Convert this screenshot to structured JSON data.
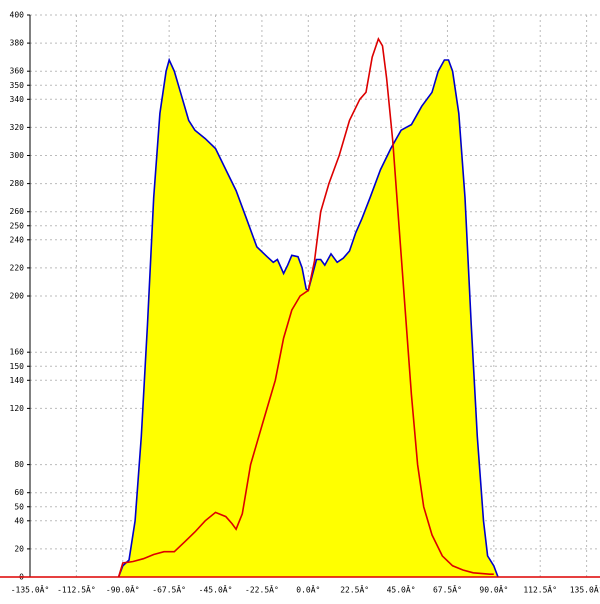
{
  "chart_data": {
    "type": "area-line",
    "xlim": [
      -135,
      141.5
    ],
    "ylim": [
      0,
      400
    ],
    "xticks": [
      {
        "value": -135,
        "label": "-135.0Â°"
      },
      {
        "value": -112.5,
        "label": "-112.5Â°"
      },
      {
        "value": -90,
        "label": "-90.0Â°"
      },
      {
        "value": -67.5,
        "label": "-67.5Â°"
      },
      {
        "value": -45,
        "label": "-45.0Â°"
      },
      {
        "value": -22.5,
        "label": "-22.5Â°"
      },
      {
        "value": 0,
        "label": "0.0Â°"
      },
      {
        "value": 22.5,
        "label": "22.5Â°"
      },
      {
        "value": 45,
        "label": "45.0Â°"
      },
      {
        "value": 67.5,
        "label": "67.5Â°"
      },
      {
        "value": 90,
        "label": "90.0Â°"
      },
      {
        "value": 112.5,
        "label": "112.5Â°"
      },
      {
        "value": 135,
        "label": "135.0Â°"
      }
    ],
    "yticks": [
      0,
      20,
      40,
      50,
      60,
      80,
      120,
      140,
      150,
      160,
      200,
      220,
      240,
      250,
      260,
      280,
      300,
      320,
      340,
      350,
      360,
      380,
      400
    ],
    "grid": true,
    "series": [
      {
        "color": "#0000cc",
        "fill": "#ffff00",
        "x": [
          -92,
          -90,
          -87,
          -84,
          -81,
          -78,
          -75,
          -72,
          -69,
          -67.5,
          -65,
          -62,
          -58,
          -55,
          -50,
          -45,
          -40,
          -35,
          -30,
          -25,
          -20,
          -17,
          -15,
          -12,
          -10,
          -8,
          -5,
          -3,
          -1,
          0,
          2,
          4,
          6,
          8,
          11,
          14,
          17,
          20,
          23,
          26,
          30,
          35,
          40,
          45,
          50,
          55,
          60,
          63,
          66,
          68,
          70,
          73,
          76,
          79,
          82,
          85,
          87,
          90,
          92
        ],
        "values": [
          0,
          8,
          12,
          40,
          100,
          180,
          270,
          330,
          360,
          368,
          360,
          345,
          325,
          318,
          312,
          305,
          290,
          275,
          255,
          235,
          228,
          224,
          226,
          216,
          222,
          229,
          228,
          220,
          205,
          204,
          215,
          226,
          226,
          222,
          230,
          224,
          227,
          232,
          245,
          255,
          270,
          290,
          305,
          318,
          322,
          335,
          345,
          360,
          368,
          368,
          360,
          330,
          270,
          180,
          100,
          40,
          15,
          8,
          0
        ]
      },
      {
        "color": "#dd0000",
        "x": [
          -92,
          -90,
          -85,
          -80,
          -75,
          -70,
          -65,
          -60,
          -55,
          -50,
          -45,
          -40,
          -37,
          -35,
          -32,
          -28,
          -22,
          -16,
          -12,
          -8,
          -4,
          0,
          3,
          6,
          10,
          15,
          20,
          25,
          28,
          31,
          34,
          36,
          38,
          41,
          44,
          47,
          50,
          53,
          56,
          60,
          65,
          70,
          75,
          80,
          88,
          90
        ],
        "values": [
          0,
          10,
          11,
          13,
          16,
          18,
          18,
          25,
          32,
          40,
          46,
          43,
          38,
          34,
          45,
          80,
          110,
          140,
          170,
          190,
          200,
          204,
          225,
          260,
          280,
          300,
          325,
          340,
          345,
          370,
          383,
          378,
          355,
          310,
          250,
          190,
          130,
          80,
          50,
          30,
          15,
          8,
          5,
          3,
          2,
          2
        ]
      }
    ]
  }
}
